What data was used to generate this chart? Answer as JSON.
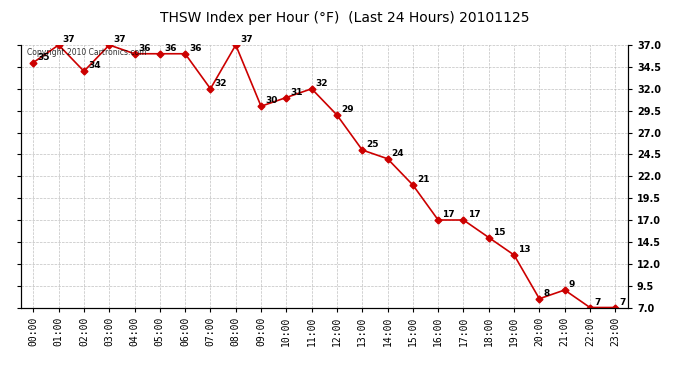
{
  "title": "THSW Index per Hour (°F)  (Last 24 Hours) 20101125",
  "hours": [
    "00:00",
    "01:00",
    "02:00",
    "03:00",
    "04:00",
    "05:00",
    "06:00",
    "07:00",
    "08:00",
    "09:00",
    "10:00",
    "11:00",
    "12:00",
    "13:00",
    "14:00",
    "15:00",
    "16:00",
    "17:00",
    "18:00",
    "19:00",
    "20:00",
    "21:00",
    "22:00",
    "23:00"
  ],
  "values": [
    35,
    37,
    34,
    37,
    36,
    36,
    36,
    32,
    37,
    30,
    31,
    32,
    29,
    25,
    24,
    21,
    17,
    17,
    15,
    13,
    8,
    9,
    7,
    7
  ],
  "ylim_min": 7.0,
  "ylim_max": 37.0,
  "yticks": [
    7.0,
    9.5,
    12.0,
    14.5,
    17.0,
    19.5,
    22.0,
    24.5,
    27.0,
    29.5,
    32.0,
    34.5,
    37.0
  ],
  "line_color": "#cc0000",
  "marker_color": "#cc0000",
  "bg_color": "#ffffff",
  "grid_color": "#b0b0b0",
  "copyright_text": "Copyright 2010 Cartronics.com",
  "label_fontsize": 6.5,
  "title_fontsize": 10,
  "tick_fontsize": 7,
  "ytick_fontsize": 7
}
